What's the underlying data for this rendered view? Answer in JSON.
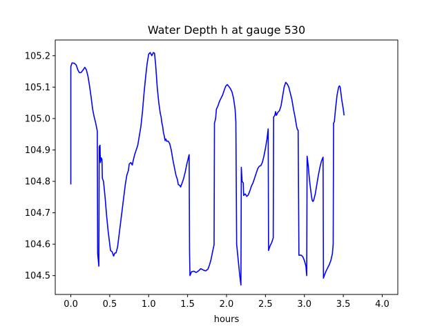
{
  "chart_data": {
    "type": "line",
    "title": "Water Depth h at gauge 530",
    "xlabel": "hours",
    "ylabel": "",
    "xlim": [
      -0.2,
      4.2
    ],
    "ylim": [
      104.44,
      105.25
    ],
    "xticks": [
      0.0,
      0.5,
      1.0,
      1.5,
      2.0,
      2.5,
      3.0,
      3.5,
      4.0
    ],
    "xtick_labels": [
      "0.0",
      "0.5",
      "1.0",
      "1.5",
      "2.0",
      "2.5",
      "3.0",
      "3.5",
      "4.0"
    ],
    "yticks": [
      104.5,
      104.6,
      104.7,
      104.8,
      104.9,
      105.0,
      105.1,
      105.2
    ],
    "ytick_labels": [
      "104.5",
      "104.6",
      "104.7",
      "104.8",
      "104.9",
      "105.0",
      "105.1",
      "105.2"
    ],
    "grid": false,
    "series": [
      {
        "color": "#0000ff",
        "points": [
          [
            0.0,
            104.79
          ],
          [
            0.0,
            105.165
          ],
          [
            0.015,
            105.177
          ],
          [
            0.045,
            105.176
          ],
          [
            0.07,
            105.17
          ],
          [
            0.09,
            105.155
          ],
          [
            0.11,
            105.146
          ],
          [
            0.13,
            105.146
          ],
          [
            0.15,
            105.152
          ],
          [
            0.17,
            105.159
          ],
          [
            0.18,
            105.163
          ],
          [
            0.2,
            105.155
          ],
          [
            0.22,
            105.135
          ],
          [
            0.24,
            105.105
          ],
          [
            0.26,
            105.07
          ],
          [
            0.28,
            105.03
          ],
          [
            0.3,
            105.005
          ],
          [
            0.32,
            104.985
          ],
          [
            0.34,
            104.96
          ],
          [
            0.345,
            104.57
          ],
          [
            0.36,
            104.53
          ],
          [
            0.365,
            104.91
          ],
          [
            0.375,
            104.915
          ],
          [
            0.38,
            104.86
          ],
          [
            0.39,
            104.875
          ],
          [
            0.4,
            104.87
          ],
          [
            0.405,
            104.81
          ],
          [
            0.42,
            104.8
          ],
          [
            0.44,
            104.75
          ],
          [
            0.46,
            104.69
          ],
          [
            0.48,
            104.64
          ],
          [
            0.5,
            104.6
          ],
          [
            0.51,
            104.58
          ],
          [
            0.53,
            104.576
          ],
          [
            0.55,
            104.562
          ],
          [
            0.565,
            104.572
          ],
          [
            0.58,
            104.572
          ],
          [
            0.6,
            104.59
          ],
          [
            0.62,
            104.63
          ],
          [
            0.64,
            104.67
          ],
          [
            0.66,
            104.71
          ],
          [
            0.68,
            104.75
          ],
          [
            0.7,
            104.79
          ],
          [
            0.72,
            104.82
          ],
          [
            0.74,
            104.835
          ],
          [
            0.75,
            104.855
          ],
          [
            0.77,
            104.86
          ],
          [
            0.79,
            104.852
          ],
          [
            0.8,
            104.865
          ],
          [
            0.82,
            104.885
          ],
          [
            0.84,
            104.9
          ],
          [
            0.86,
            104.915
          ],
          [
            0.88,
            104.945
          ],
          [
            0.9,
            104.975
          ],
          [
            0.92,
            105.02
          ],
          [
            0.94,
            105.08
          ],
          [
            0.96,
            105.13
          ],
          [
            0.98,
            105.175
          ],
          [
            1.0,
            105.205
          ],
          [
            1.02,
            105.21
          ],
          [
            1.04,
            105.2
          ],
          [
            1.06,
            105.21
          ],
          [
            1.075,
            105.208
          ],
          [
            1.09,
            105.17
          ],
          [
            1.11,
            105.1
          ],
          [
            1.13,
            105.05
          ],
          [
            1.15,
            105.015
          ],
          [
            1.16,
            105.005
          ],
          [
            1.17,
            104.985
          ],
          [
            1.18,
            104.975
          ],
          [
            1.19,
            104.955
          ],
          [
            1.2,
            104.945
          ],
          [
            1.21,
            104.93
          ],
          [
            1.22,
            104.935
          ],
          [
            1.23,
            104.928
          ],
          [
            1.25,
            104.928
          ],
          [
            1.27,
            104.92
          ],
          [
            1.29,
            104.9
          ],
          [
            1.31,
            104.87
          ],
          [
            1.33,
            104.845
          ],
          [
            1.35,
            104.82
          ],
          [
            1.37,
            104.805
          ],
          [
            1.38,
            104.79
          ],
          [
            1.4,
            104.787
          ],
          [
            1.41,
            104.782
          ],
          [
            1.43,
            104.795
          ],
          [
            1.45,
            104.81
          ],
          [
            1.47,
            104.83
          ],
          [
            1.49,
            104.855
          ],
          [
            1.51,
            104.875
          ],
          [
            1.52,
            104.885
          ],
          [
            1.525,
            104.58
          ],
          [
            1.53,
            104.5
          ],
          [
            1.55,
            104.512
          ],
          [
            1.58,
            104.514
          ],
          [
            1.61,
            104.51
          ],
          [
            1.64,
            104.515
          ],
          [
            1.67,
            104.522
          ],
          [
            1.7,
            104.518
          ],
          [
            1.73,
            104.515
          ],
          [
            1.76,
            104.52
          ],
          [
            1.78,
            104.533
          ],
          [
            1.8,
            104.55
          ],
          [
            1.82,
            104.575
          ],
          [
            1.84,
            104.598
          ],
          [
            1.845,
            104.985
          ],
          [
            1.86,
            105.0
          ],
          [
            1.87,
            105.03
          ],
          [
            1.89,
            105.04
          ],
          [
            1.91,
            105.055
          ],
          [
            1.93,
            105.065
          ],
          [
            1.95,
            105.075
          ],
          [
            1.97,
            105.09
          ],
          [
            1.99,
            105.103
          ],
          [
            2.01,
            105.108
          ],
          [
            2.03,
            105.102
          ],
          [
            2.05,
            105.095
          ],
          [
            2.07,
            105.085
          ],
          [
            2.09,
            105.065
          ],
          [
            2.11,
            105.03
          ],
          [
            2.12,
            104.99
          ],
          [
            2.13,
            104.6
          ],
          [
            2.15,
            104.55
          ],
          [
            2.17,
            104.5
          ],
          [
            2.185,
            104.47
          ],
          [
            2.19,
            104.845
          ],
          [
            2.2,
            104.8
          ],
          [
            2.215,
            104.795
          ],
          [
            2.22,
            104.755
          ],
          [
            2.24,
            104.76
          ],
          [
            2.26,
            104.752
          ],
          [
            2.28,
            104.757
          ],
          [
            2.3,
            104.77
          ],
          [
            2.32,
            104.785
          ],
          [
            2.34,
            104.795
          ],
          [
            2.36,
            104.81
          ],
          [
            2.38,
            104.825
          ],
          [
            2.4,
            104.84
          ],
          [
            2.42,
            104.848
          ],
          [
            2.44,
            104.85
          ],
          [
            2.46,
            104.86
          ],
          [
            2.48,
            104.88
          ],
          [
            2.5,
            104.905
          ],
          [
            2.52,
            104.935
          ],
          [
            2.535,
            104.967
          ],
          [
            2.54,
            104.58
          ],
          [
            2.56,
            104.595
          ],
          [
            2.58,
            104.605
          ],
          [
            2.6,
            104.62
          ],
          [
            2.605,
            105.005
          ],
          [
            2.62,
            105.01
          ],
          [
            2.63,
            105.022
          ],
          [
            2.64,
            105.01
          ],
          [
            2.66,
            105.02
          ],
          [
            2.68,
            105.025
          ],
          [
            2.7,
            105.04
          ],
          [
            2.72,
            105.07
          ],
          [
            2.74,
            105.1
          ],
          [
            2.76,
            105.115
          ],
          [
            2.78,
            105.11
          ],
          [
            2.8,
            105.1
          ],
          [
            2.82,
            105.08
          ],
          [
            2.84,
            105.06
          ],
          [
            2.86,
            105.03
          ],
          [
            2.88,
            105.005
          ],
          [
            2.9,
            104.975
          ],
          [
            2.91,
            104.965
          ],
          [
            2.92,
            104.963
          ],
          [
            2.93,
            104.565
          ],
          [
            2.96,
            104.565
          ],
          [
            2.98,
            104.56
          ],
          [
            3.0,
            104.548
          ],
          [
            3.02,
            104.53
          ],
          [
            3.03,
            104.5
          ],
          [
            3.035,
            104.88
          ],
          [
            3.05,
            104.85
          ],
          [
            3.06,
            104.82
          ],
          [
            3.07,
            104.795
          ],
          [
            3.08,
            104.775
          ],
          [
            3.09,
            104.755
          ],
          [
            3.1,
            104.74
          ],
          [
            3.11,
            104.736
          ],
          [
            3.12,
            104.74
          ],
          [
            3.14,
            104.76
          ],
          [
            3.16,
            104.79
          ],
          [
            3.18,
            104.82
          ],
          [
            3.2,
            104.845
          ],
          [
            3.22,
            104.865
          ],
          [
            3.24,
            104.877
          ],
          [
            3.245,
            104.492
          ],
          [
            3.26,
            104.503
          ],
          [
            3.28,
            104.515
          ],
          [
            3.3,
            104.525
          ],
          [
            3.32,
            104.535
          ],
          [
            3.34,
            104.548
          ],
          [
            3.36,
            104.57
          ],
          [
            3.37,
            104.6
          ],
          [
            3.375,
            104.985
          ],
          [
            3.385,
            104.99
          ],
          [
            3.4,
            105.03
          ],
          [
            3.42,
            105.075
          ],
          [
            3.44,
            105.1
          ],
          [
            3.45,
            105.104
          ],
          [
            3.46,
            105.1
          ],
          [
            3.47,
            105.08
          ],
          [
            3.48,
            105.06
          ],
          [
            3.49,
            105.045
          ],
          [
            3.5,
            105.03
          ],
          [
            3.51,
            105.01
          ]
        ]
      }
    ]
  }
}
